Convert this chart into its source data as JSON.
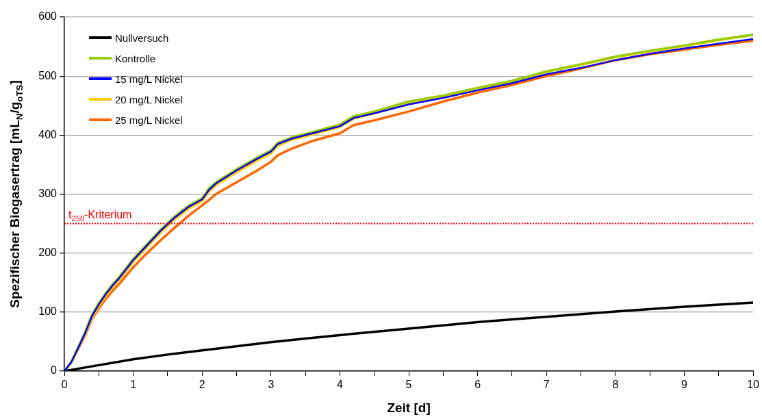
{
  "chart_data": {
    "type": "line",
    "xlabel": "Zeit [d]",
    "ylabel": "Spezifischer Biogasertrag [mL$_{N}$/g$_{oTS}$]",
    "xlim": [
      0,
      10
    ],
    "xticks": [
      0,
      {
        "value": 0.5,
        "label": null
      },
      1,
      {
        "value": 1.5,
        "label": null
      },
      2,
      {
        "value": 2.5,
        "label": null
      },
      3,
      {
        "value": 3.5,
        "label": null
      },
      4,
      {
        "value": 4.5,
        "label": null
      },
      5,
      {
        "value": 5.5,
        "label": null
      },
      6,
      {
        "value": 6.5,
        "label": null
      },
      7,
      {
        "value": 7.5,
        "label": null
      },
      8,
      {
        "value": 8.5,
        "label": null
      },
      9,
      {
        "value": 9.5,
        "label": null
      },
      10
    ],
    "ylim": [
      0,
      600
    ],
    "yticks": [
      0,
      100,
      200,
      300,
      400,
      500,
      600
    ],
    "grid": "y",
    "legend": "top left",
    "marker": "none",
    "line_style": "solid",
    "ref_lines": [
      {
        "axis": "y",
        "value": 250,
        "label": "t$_{250}$-Kriterium",
        "color": "#ff0000",
        "line_style": "dotted"
      }
    ],
    "series": [
      {
        "name": "Nullversuch",
        "color": "#000000",
        "x": [
          0,
          0.5,
          1,
          1.5,
          2,
          2.5,
          3,
          3.5,
          4,
          5,
          6,
          7,
          8,
          9,
          10
        ],
        "values": [
          0,
          10,
          20,
          28,
          35,
          42,
          49,
          55,
          61,
          72,
          83,
          92,
          101,
          109,
          116
        ]
      },
      {
        "name": "Kontrolle",
        "color": "#99cc00",
        "x": [
          0,
          0.1,
          0.2,
          0.3,
          0.4,
          0.5,
          0.6,
          0.7,
          0.8,
          1,
          1.2,
          1.4,
          1.6,
          1.8,
          2,
          2.1,
          2.2,
          2.5,
          2.8,
          3,
          3.1,
          3.3,
          3.6,
          4,
          4.2,
          4.5,
          5,
          5.5,
          6,
          6.5,
          7,
          7.5,
          8,
          8.5,
          9,
          9.5,
          10
        ],
        "values": [
          0,
          15,
          40,
          65,
          95,
          115,
          132,
          147,
          160,
          190,
          215,
          240,
          262,
          280,
          293,
          310,
          320,
          342,
          362,
          374,
          387,
          396,
          405,
          418,
          432,
          440,
          457,
          467,
          480,
          492,
          508,
          520,
          533,
          543,
          552,
          562,
          570
        ]
      },
      {
        "name": "15 mg/L Nickel",
        "color": "#0000ff",
        "x": [
          0,
          0.1,
          0.2,
          0.3,
          0.4,
          0.5,
          0.6,
          0.7,
          0.8,
          1,
          1.2,
          1.4,
          1.6,
          1.8,
          2,
          2.1,
          2.2,
          2.5,
          2.8,
          3,
          3.1,
          3.3,
          3.6,
          4,
          4.2,
          4.5,
          5,
          5.5,
          6,
          6.5,
          7,
          7.5,
          8,
          8.5,
          9,
          9.5,
          10
        ],
        "values": [
          0,
          15,
          39,
          64,
          93,
          113,
          130,
          145,
          158,
          188,
          213,
          238,
          260,
          278,
          291,
          307,
          318,
          340,
          360,
          372,
          385,
          394,
          403,
          415,
          429,
          437,
          452,
          463,
          476,
          488,
          503,
          514,
          527,
          538,
          547,
          555,
          563
        ]
      },
      {
        "name": "20 mg/L Nickel",
        "color": "#ffcc00",
        "x": [
          0,
          0.1,
          0.2,
          0.3,
          0.4,
          0.5,
          0.6,
          0.7,
          0.8,
          1,
          1.2,
          1.4,
          1.6,
          1.8,
          2,
          2.1,
          2.2,
          2.5,
          2.8,
          3,
          3.1,
          3.3,
          3.6,
          4,
          4.2,
          4.5,
          5,
          5.5,
          6,
          6.5,
          7,
          7.5,
          8,
          8.5,
          9,
          9.5,
          10
        ],
        "values": [
          0,
          14,
          38,
          62,
          90,
          110,
          127,
          142,
          155,
          185,
          210,
          235,
          257,
          275,
          288,
          304,
          315,
          337,
          357,
          369,
          382,
          392,
          401,
          414,
          428,
          437,
          453,
          465,
          478,
          491,
          507,
          519,
          532,
          542,
          551,
          561,
          570
        ]
      },
      {
        "name": "25 mg/L Nickel",
        "color": "#ff6600",
        "x": [
          0,
          0.1,
          0.2,
          0.3,
          0.4,
          0.5,
          0.6,
          0.7,
          0.8,
          1,
          1.2,
          1.4,
          1.6,
          1.8,
          2,
          2.1,
          2.2,
          2.5,
          2.8,
          3,
          3.1,
          3.3,
          3.6,
          4,
          4.2,
          4.5,
          5,
          5.5,
          6,
          6.5,
          7,
          7.5,
          8,
          8.5,
          9,
          9.5,
          10
        ],
        "values": [
          0,
          14,
          37,
          60,
          88,
          106,
          122,
          136,
          148,
          176,
          200,
          222,
          243,
          263,
          281,
          290,
          300,
          320,
          340,
          355,
          366,
          377,
          390,
          403,
          417,
          425,
          440,
          457,
          472,
          485,
          500,
          513,
          527,
          537,
          545,
          553,
          560
        ]
      }
    ]
  }
}
